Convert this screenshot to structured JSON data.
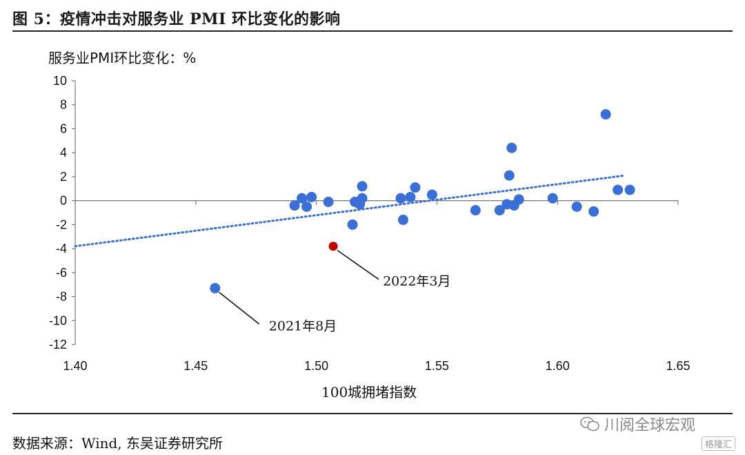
{
  "title": "图 5：疫情冲击对服务业 PMI 环比变化的影响",
  "source": "数据来源：Wind, 东吴证券研究所",
  "watermark": "川阅全球宏观",
  "brand": "格隆汇",
  "chart_data": {
    "type": "scatter",
    "ylabel": "服务业PMI环比变化：%",
    "xlabel": "100城拥堵指数",
    "xlim": [
      1.4,
      1.65
    ],
    "ylim": [
      -12,
      10
    ],
    "x_ticks": [
      "1.40",
      "1.45",
      "1.50",
      "1.55",
      "1.60",
      "1.65"
    ],
    "y_ticks": [
      "10",
      "8",
      "6",
      "4",
      "2",
      "0",
      "-2",
      "-4",
      "-6",
      "-8",
      "-10",
      "-12"
    ],
    "point_color": "#3b6fd8",
    "highlight_color": "#c00000",
    "trendline_color": "#3b6fd8",
    "trendline": {
      "x": [
        1.4,
        1.628
      ],
      "y": [
        -3.8,
        2.1
      ]
    },
    "points": [
      {
        "x": 1.458,
        "y": -7.3
      },
      {
        "x": 1.491,
        "y": -0.4
      },
      {
        "x": 1.494,
        "y": 0.2
      },
      {
        "x": 1.496,
        "y": -0.5
      },
      {
        "x": 1.498,
        "y": 0.3
      },
      {
        "x": 1.505,
        "y": -0.1
      },
      {
        "x": 1.515,
        "y": -2.0
      },
      {
        "x": 1.516,
        "y": -0.1
      },
      {
        "x": 1.518,
        "y": -0.3
      },
      {
        "x": 1.519,
        "y": 1.2
      },
      {
        "x": 1.519,
        "y": 0.2
      },
      {
        "x": 1.535,
        "y": 0.2
      },
      {
        "x": 1.536,
        "y": -1.6
      },
      {
        "x": 1.539,
        "y": 0.3
      },
      {
        "x": 1.541,
        "y": 1.1
      },
      {
        "x": 1.548,
        "y": 0.5
      },
      {
        "x": 1.566,
        "y": -0.8
      },
      {
        "x": 1.576,
        "y": -0.8
      },
      {
        "x": 1.579,
        "y": -0.3
      },
      {
        "x": 1.58,
        "y": 2.1
      },
      {
        "x": 1.581,
        "y": 4.4
      },
      {
        "x": 1.582,
        "y": -0.4
      },
      {
        "x": 1.584,
        "y": 0.1
      },
      {
        "x": 1.598,
        "y": 0.2
      },
      {
        "x": 1.608,
        "y": -0.5
      },
      {
        "x": 1.615,
        "y": -0.9
      },
      {
        "x": 1.62,
        "y": 7.2
      },
      {
        "x": 1.625,
        "y": 0.9
      },
      {
        "x": 1.63,
        "y": 0.9
      }
    ],
    "highlight": {
      "x": 1.507,
      "y": -3.8
    },
    "annotations": [
      {
        "text": "2022年3月",
        "x": 1.507,
        "y": -3.8
      },
      {
        "text": "2021年8月",
        "x": 1.458,
        "y": -7.3
      }
    ]
  }
}
